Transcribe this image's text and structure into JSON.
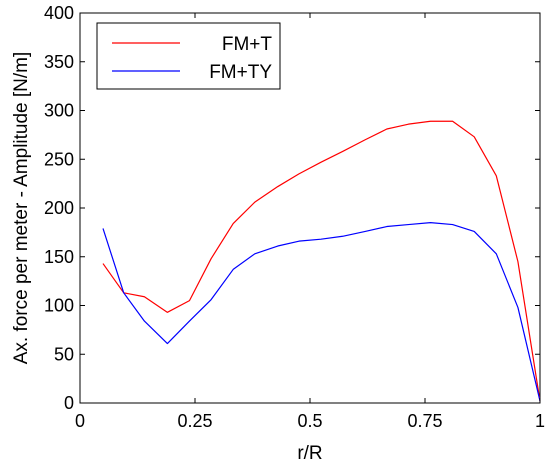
{
  "chart_data": {
    "type": "line",
    "title": "",
    "xlabel": "r/R",
    "ylabel": "Ax. force per meter - Amplitude [N/m]",
    "xlim": [
      0,
      1
    ],
    "ylim": [
      0,
      400
    ],
    "xticks": [
      0,
      0.25,
      0.5,
      0.75,
      1
    ],
    "xtick_labels": [
      "0",
      "0.25",
      "0.5",
      "0.75",
      "1"
    ],
    "yticks": [
      0,
      50,
      100,
      150,
      200,
      250,
      300,
      350,
      400
    ],
    "ytick_labels": [
      "0",
      "50",
      "100",
      "150",
      "200",
      "250",
      "300",
      "350",
      "400"
    ],
    "grid": false,
    "legend_position": "top-left",
    "series": [
      {
        "name": "FM+T",
        "color": "#ff0000",
        "x": [
          0.05,
          0.095,
          0.14,
          0.19,
          0.238,
          0.285,
          0.333,
          0.38,
          0.43,
          0.476,
          0.524,
          0.571,
          0.62,
          0.667,
          0.714,
          0.762,
          0.81,
          0.857,
          0.905,
          0.952,
          1.0
        ],
        "y": [
          143,
          113,
          109,
          93,
          105,
          148,
          184,
          206,
          222,
          235,
          247,
          258,
          270,
          281,
          286,
          289,
          289,
          273,
          233,
          145,
          2
        ]
      },
      {
        "name": "FM+TY",
        "color": "#0000ff",
        "x": [
          0.05,
          0.095,
          0.14,
          0.19,
          0.238,
          0.285,
          0.333,
          0.38,
          0.43,
          0.476,
          0.524,
          0.571,
          0.62,
          0.667,
          0.714,
          0.762,
          0.81,
          0.857,
          0.905,
          0.952,
          1.0
        ],
        "y": [
          179,
          113,
          84,
          61,
          84,
          106,
          137,
          153,
          161,
          166,
          168,
          171,
          176,
          181,
          183,
          185,
          183,
          176,
          153,
          98,
          2
        ]
      }
    ]
  }
}
